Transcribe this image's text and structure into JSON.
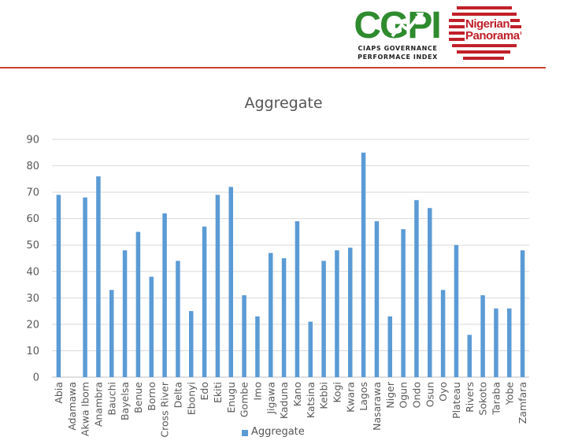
{
  "header": {
    "cgpi_logo_text": "CGPI",
    "cgpi_line1": "CIAPS GOVERNANCE",
    "cgpi_line2": "PERFORMACE INDEX",
    "np_line1": "Nigerian",
    "np_line2": "Panorama",
    "colors": {
      "cgpi_green": "#2e8b2e",
      "np_red": "#c0202a",
      "rule": "#c9432d"
    }
  },
  "chart_data": {
    "type": "bar",
    "title": "Aggregate",
    "xlabel": "",
    "ylabel": "",
    "ylim": [
      0,
      90
    ],
    "yticks": [
      0,
      10,
      20,
      30,
      40,
      50,
      60,
      70,
      80,
      90
    ],
    "grid": true,
    "legend_position": "bottom",
    "bar_color": "#5b9bd5",
    "categories": [
      "Abia",
      "Adamawa",
      "Akwa Ibom",
      "Anambra",
      "Bauchi",
      "Bayelsa",
      "Benue",
      "Borno",
      "Cross River",
      "Delta",
      "Ebonyi",
      "Edo",
      "Ekiti",
      "Enugu",
      "Gombe",
      "Imo",
      "Jigawa",
      "Kaduna",
      "Kano",
      "Katsina",
      "Kebbi",
      "Kogi",
      "Kwara",
      "Lagos",
      "Nasarawa",
      "Niger",
      "Ogun",
      "Ondo",
      "Osun",
      "Oyo",
      "Plateau",
      "Rivers",
      "Sokoto",
      "Taraba",
      "Yobe",
      "Zamfara"
    ],
    "series": [
      {
        "name": "Aggregate",
        "values": [
          69,
          0,
          68,
          76,
          33,
          48,
          55,
          38,
          62,
          44,
          25,
          57,
          69,
          72,
          31,
          23,
          47,
          45,
          59,
          21,
          44,
          48,
          49,
          85,
          59,
          23,
          56,
          67,
          64,
          33,
          50,
          16,
          31,
          26,
          26,
          48
        ]
      }
    ]
  }
}
